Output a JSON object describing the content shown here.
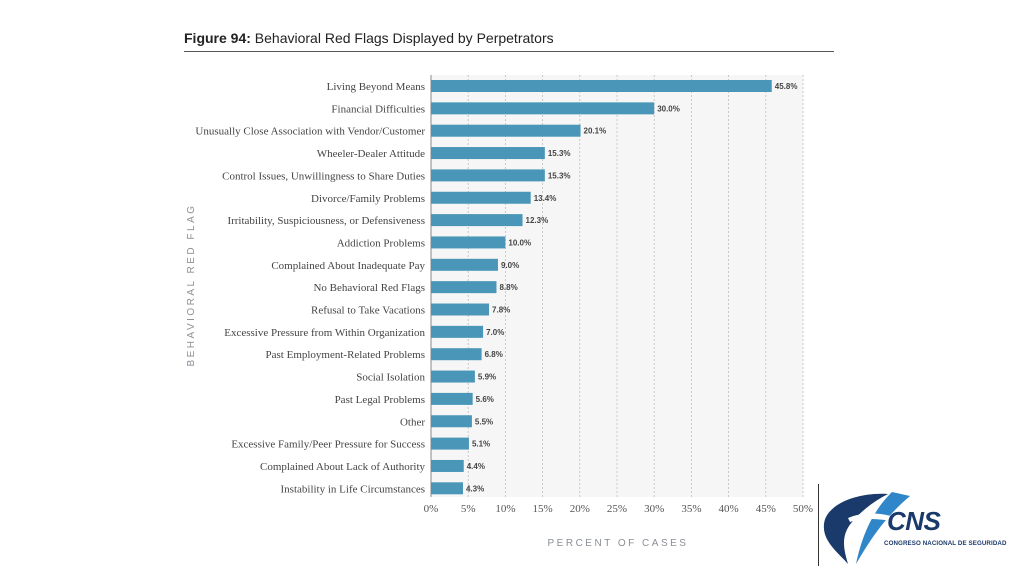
{
  "figure": {
    "number": "Figure 94:",
    "title": "Behavioral Red Flags Displayed by Perpetrators"
  },
  "logo": {
    "name": "CNS",
    "subtitle": "CONGRESO NACIONAL DE SEGURIDAD",
    "colors": {
      "navy": "#1a3a6b",
      "blue": "#2f86c8"
    }
  },
  "chart_data": {
    "type": "bar",
    "orientation": "horizontal",
    "title": "Behavioral Red Flags Displayed by Perpetrators",
    "xlabel": "PERCENT OF CASES",
    "ylabel": "BEHAVIORAL RED FLAG",
    "xlim": [
      0,
      50
    ],
    "x_ticks": [
      0,
      5,
      10,
      15,
      20,
      25,
      30,
      35,
      40,
      45,
      50
    ],
    "x_tick_labels": [
      "0%",
      "5%",
      "10%",
      "15%",
      "20%",
      "25%",
      "30%",
      "35%",
      "40%",
      "45%",
      "50%"
    ],
    "grid": "vertical dashed",
    "bar_color": "#4a96b8",
    "categories": [
      "Living Beyond Means",
      "Financial Difficulties",
      "Unusually Close Association with Vendor/Customer",
      "Wheeler-Dealer Attitude",
      "Control Issues, Unwillingness to Share Duties",
      "Divorce/Family Problems",
      "Irritability, Suspiciousness, or Defensiveness",
      "Addiction Problems",
      "Complained About Inadequate Pay",
      "No Behavioral Red Flags",
      "Refusal to Take Vacations",
      "Excessive Pressure from Within Organization",
      "Past Employment-Related Problems",
      "Social Isolation",
      "Past Legal Problems",
      "Other",
      "Excessive Family/Peer Pressure for Success",
      "Complained About Lack of Authority",
      "Instability in Life Circumstances"
    ],
    "values": [
      45.8,
      30.0,
      20.1,
      15.3,
      15.3,
      13.4,
      12.3,
      10.0,
      9.0,
      8.8,
      7.8,
      7.0,
      6.8,
      5.9,
      5.6,
      5.5,
      5.1,
      4.4,
      4.3
    ],
    "value_labels": [
      "45.8%",
      "30.0%",
      "20.1%",
      "15.3%",
      "15.3%",
      "13.4%",
      "12.3%",
      "10.0%",
      "9.0%",
      "8.8%",
      "7.8%",
      "7.0%",
      "6.8%",
      "5.9%",
      "5.6%",
      "5.5%",
      "5.1%",
      "4.4%",
      "4.3%"
    ]
  }
}
